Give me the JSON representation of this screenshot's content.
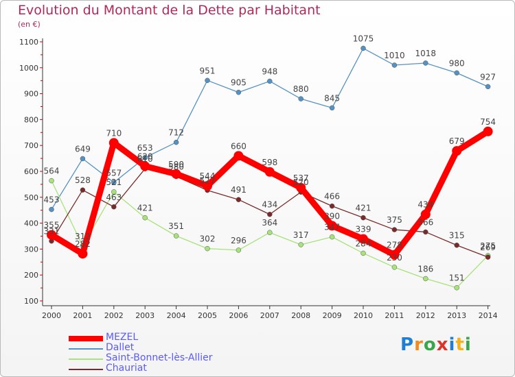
{
  "title": "Evolution du Montant de la Dette par Habitant",
  "unit": "(en €)",
  "logo": "Proxiti",
  "chart_data": {
    "type": "line",
    "x": [
      "2000",
      "2001",
      "2002",
      "2003",
      "2004",
      "2005",
      "2006",
      "2007",
      "2008",
      "2009",
      "2010",
      "2011",
      "2012",
      "2013",
      "2014"
    ],
    "ylim": [
      100,
      1100
    ],
    "yticks": [
      100,
      200,
      300,
      400,
      500,
      600,
      700,
      800,
      900,
      1000,
      1100
    ],
    "grid": false,
    "legend_position": "bottom-left",
    "series": [
      {
        "name": "MEZEL",
        "color": "#ff0000",
        "values": [
          355,
          282,
          710,
          620,
          590,
          544,
          660,
          598,
          537,
          390,
          339,
          278,
          434,
          679,
          754
        ],
        "labels": [
          "355",
          "282",
          "710",
          "620",
          "590",
          "544",
          "660",
          "598",
          "537",
          "390",
          "339",
          "278",
          "434",
          "679",
          "754"
        ]
      },
      {
        "name": "Dallet",
        "color": "#5592c4",
        "values": [
          453,
          649,
          557,
          653,
          712,
          951,
          905,
          948,
          880,
          845,
          1075,
          1010,
          1018,
          980,
          927
        ],
        "labels": [
          "453",
          "649",
          "557",
          "653",
          "712",
          "951",
          "905",
          "948",
          "880",
          "845",
          "1075",
          "1010",
          "1018",
          "980",
          "927"
        ]
      },
      {
        "name": "Saint-Bonnet-lès-Allier",
        "color": "#a8e27a",
        "values": [
          564,
          312,
          521,
          421,
          351,
          302,
          296,
          364,
          317,
          347,
          284,
          230,
          186,
          151,
          275
        ],
        "labels": [
          "564",
          "312",
          "521",
          "421",
          "351",
          "302",
          "296",
          "364",
          "317",
          "347",
          "284",
          "230",
          "186",
          "151",
          "275"
        ]
      },
      {
        "name": "Chauriat",
        "color": "#7a2a2a",
        "values": [
          331,
          528,
          463,
          610,
          580,
          527,
          491,
          434,
          520,
          466,
          421,
          375,
          366,
          315,
          269
        ],
        "labels": [
          "331",
          "528",
          "463",
          "610",
          "580",
          "527",
          "491",
          "434",
          "520",
          "466",
          "421",
          "375",
          "366",
          "315",
          "269"
        ]
      }
    ]
  }
}
